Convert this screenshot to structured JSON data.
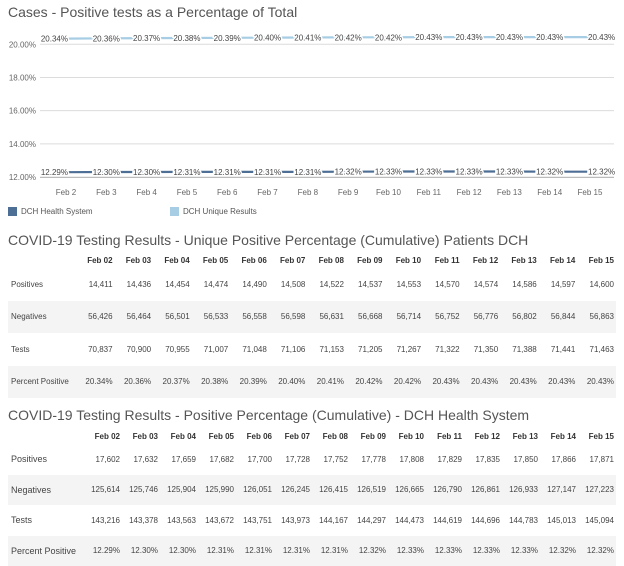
{
  "chart_data": {
    "type": "line",
    "title": "Cases - Positive tests as a Percentage of Total",
    "categories": [
      "Feb 2",
      "Feb 3",
      "Feb 4",
      "Feb 5",
      "Feb 6",
      "Feb 7",
      "Feb 8",
      "Feb 9",
      "Feb 10",
      "Feb 11",
      "Feb 12",
      "Feb 13",
      "Feb 14",
      "Feb 15"
    ],
    "ylim": [
      12,
      20
    ],
    "yticks": [
      "12.00%",
      "14.00%",
      "16.00%",
      "18.00%",
      "20.00%"
    ],
    "ytick_values": [
      12,
      14,
      16,
      18,
      20
    ],
    "grid": true,
    "legend_position": "bottom-left",
    "series": [
      {
        "name": "DCH Health System",
        "color": "#4e6f95",
        "values": [
          12.29,
          12.3,
          12.3,
          12.31,
          12.31,
          12.31,
          12.31,
          12.32,
          12.33,
          12.33,
          12.33,
          12.33,
          12.32,
          12.32
        ],
        "labels": [
          "12.29%",
          "12.30%",
          "12.30%",
          "12.31%",
          "12.31%",
          "12.31%",
          "12.31%",
          "12.32%",
          "12.33%",
          "12.33%",
          "12.33%",
          "12.33%",
          "12.32%",
          "12.32%"
        ]
      },
      {
        "name": "DCH Unique Results",
        "color": "#a6cde3",
        "values": [
          20.34,
          20.36,
          20.37,
          20.38,
          20.39,
          20.4,
          20.41,
          20.42,
          20.42,
          20.43,
          20.43,
          20.43,
          20.43,
          20.43
        ],
        "labels": [
          "20.34%",
          "20.36%",
          "20.37%",
          "20.38%",
          "20.39%",
          "20.40%",
          "20.41%",
          "20.42%",
          "20.42%",
          "20.43%",
          "20.43%",
          "20.43%",
          "20.43%",
          "20.43%"
        ]
      }
    ]
  },
  "table1": {
    "title": "COVID-19 Testing Results - Unique Positive Percentage (Cumulative) Patients DCH",
    "headers": [
      "Feb 02",
      "Feb 03",
      "Feb 04",
      "Feb 05",
      "Feb 06",
      "Feb 07",
      "Feb 08",
      "Feb 09",
      "Feb 10",
      "Feb 11",
      "Feb 12",
      "Feb 13",
      "Feb 14",
      "Feb 15"
    ],
    "rows": [
      {
        "label": "Positives",
        "values": [
          "14,411",
          "14,436",
          "14,454",
          "14,474",
          "14,490",
          "14,508",
          "14,522",
          "14,537",
          "14,553",
          "14,570",
          "14,574",
          "14,586",
          "14,597",
          "14,600"
        ]
      },
      {
        "label": "Negatives",
        "values": [
          "56,426",
          "56,464",
          "56,501",
          "56,533",
          "56,558",
          "56,598",
          "56,631",
          "56,668",
          "56,714",
          "56,752",
          "56,776",
          "56,802",
          "56,844",
          "56,863"
        ]
      },
      {
        "label": "Tests",
        "values": [
          "70,837",
          "70,900",
          "70,955",
          "71,007",
          "71,048",
          "71,106",
          "71,153",
          "71,205",
          "71,267",
          "71,322",
          "71,350",
          "71,388",
          "71,441",
          "71,463"
        ]
      },
      {
        "label": "Percent Positive",
        "values": [
          "20.34%",
          "20.36%",
          "20.37%",
          "20.38%",
          "20.39%",
          "20.40%",
          "20.41%",
          "20.42%",
          "20.42%",
          "20.43%",
          "20.43%",
          "20.43%",
          "20.43%",
          "20.43%"
        ]
      }
    ]
  },
  "table2": {
    "title": "COVID-19 Testing Results - Positive Percentage (Cumulative) - DCH Health System",
    "headers": [
      "Feb 02",
      "Feb 03",
      "Feb 04",
      "Feb 05",
      "Feb 06",
      "Feb 07",
      "Feb 08",
      "Feb 09",
      "Feb 10",
      "Feb 11",
      "Feb 12",
      "Feb 13",
      "Feb 14",
      "Feb 15"
    ],
    "rows": [
      {
        "label": "Positives",
        "values": [
          "17,602",
          "17,632",
          "17,659",
          "17,682",
          "17,700",
          "17,728",
          "17,752",
          "17,778",
          "17,808",
          "17,829",
          "17,835",
          "17,850",
          "17,866",
          "17,871"
        ]
      },
      {
        "label": "Negatives",
        "values": [
          "125,614",
          "125,746",
          "125,904",
          "125,990",
          "126,051",
          "126,245",
          "126,415",
          "126,519",
          "126,665",
          "126,790",
          "126,861",
          "126,933",
          "127,147",
          "127,223"
        ]
      },
      {
        "label": "Tests",
        "values": [
          "143,216",
          "143,378",
          "143,563",
          "143,672",
          "143,751",
          "143,973",
          "144,167",
          "144,297",
          "144,473",
          "144,619",
          "144,696",
          "144,783",
          "145,013",
          "145,094"
        ]
      },
      {
        "label": "Percent Positive",
        "values": [
          "12.29%",
          "12.30%",
          "12.30%",
          "12.31%",
          "12.31%",
          "12.31%",
          "12.31%",
          "12.32%",
          "12.33%",
          "12.33%",
          "12.33%",
          "12.33%",
          "12.32%",
          "12.32%"
        ]
      }
    ]
  }
}
